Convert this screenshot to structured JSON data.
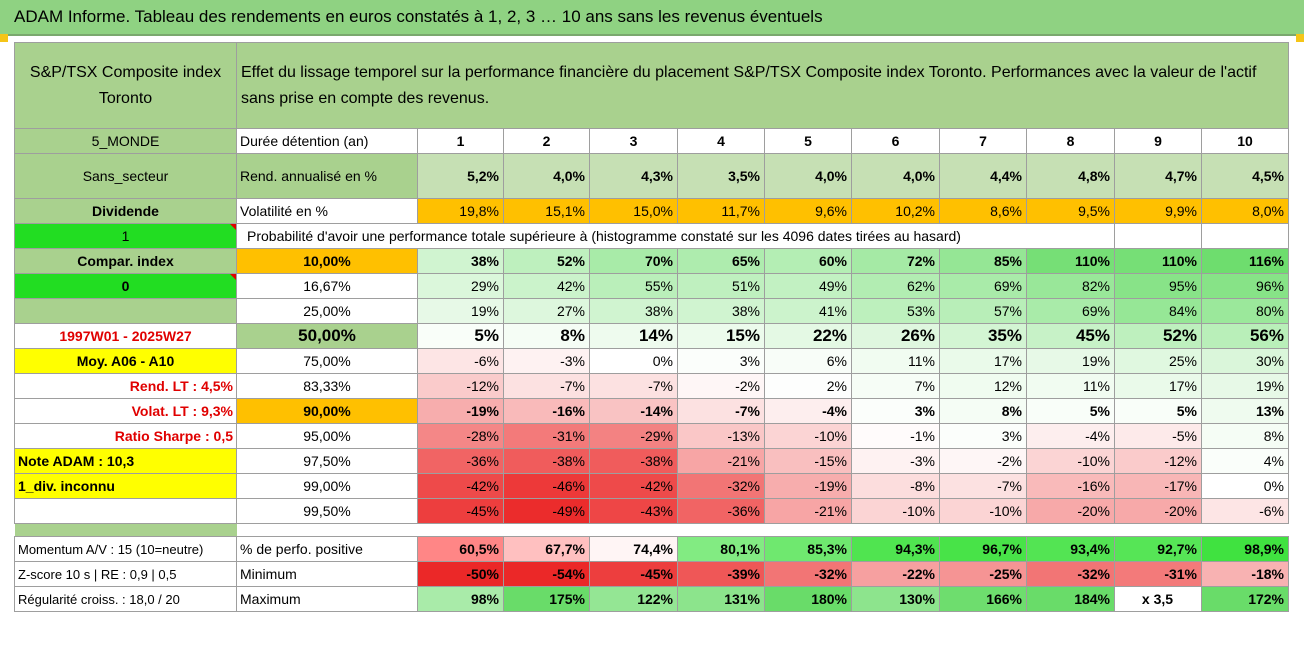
{
  "title": "ADAM Informe. Tableau des rendements en euros constatés à 1, 2, 3 … 10 ans sans les revenus éventuels",
  "header": {
    "index_name": "S&P/TSX Composite index Toronto",
    "description": "Effet du lissage temporel sur la performance financière du placement S&P/TSX Composite index Toronto. Performances avec la valeur de l'actif sans prise en compte des revenus."
  },
  "left_labels": {
    "monde": "5_MONDE",
    "secteur": "Sans_secteur",
    "dividende": "Dividende",
    "one": "1",
    "compar": "Compar. index",
    "zero": "0",
    "period": "1997W01 - 2025W27",
    "moy": "Moy. A06 - A10",
    "rend_lt": "Rend. LT :   4,5%",
    "volat_lt": "Volat. LT :   9,3%",
    "sharpe": "Ratio Sharpe :   0,5",
    "note": "Note ADAM : 10,3",
    "div": "1_div. inconnu"
  },
  "row_labels": {
    "duree": "Durée détention (an)",
    "rend": "Rend. annualisé en %",
    "vol": "Volatilité en %",
    "proba": "Probabilité d'avoir une performance totale supérieure à (histogramme constaté sur les 4096 dates tirées au hasard)"
  },
  "years": [
    "1",
    "2",
    "3",
    "4",
    "5",
    "6",
    "7",
    "8",
    "9",
    "10"
  ],
  "rend": [
    "5,2%",
    "4,0%",
    "4,3%",
    "3,5%",
    "4,0%",
    "4,0%",
    "4,4%",
    "4,8%",
    "4,7%",
    "4,5%"
  ],
  "vol": [
    "19,8%",
    "15,1%",
    "15,0%",
    "11,7%",
    "9,6%",
    "10,2%",
    "8,6%",
    "9,5%",
    "9,9%",
    "8,0%"
  ],
  "percentiles": [
    {
      "label": "10,00%",
      "values": [
        "38%",
        "52%",
        "70%",
        "65%",
        "60%",
        "72%",
        "85%",
        "110%",
        "110%",
        "116%"
      ]
    },
    {
      "label": "16,67%",
      "values": [
        "29%",
        "42%",
        "55%",
        "51%",
        "49%",
        "62%",
        "69%",
        "82%",
        "95%",
        "96%"
      ]
    },
    {
      "label": "25,00%",
      "values": [
        "19%",
        "27%",
        "38%",
        "38%",
        "41%",
        "53%",
        "57%",
        "69%",
        "84%",
        "80%"
      ]
    },
    {
      "label": "50,00%",
      "values": [
        "5%",
        "8%",
        "14%",
        "15%",
        "22%",
        "26%",
        "35%",
        "45%",
        "52%",
        "56%"
      ]
    },
    {
      "label": "75,00%",
      "values": [
        "-6%",
        "-3%",
        "0%",
        "3%",
        "6%",
        "11%",
        "17%",
        "19%",
        "25%",
        "30%"
      ]
    },
    {
      "label": "83,33%",
      "values": [
        "-12%",
        "-7%",
        "-7%",
        "-2%",
        "2%",
        "7%",
        "12%",
        "11%",
        "17%",
        "19%"
      ]
    },
    {
      "label": "90,00%",
      "values": [
        "-19%",
        "-16%",
        "-14%",
        "-7%",
        "-4%",
        "3%",
        "8%",
        "5%",
        "5%",
        "13%"
      ]
    },
    {
      "label": "95,00%",
      "values": [
        "-28%",
        "-31%",
        "-29%",
        "-13%",
        "-10%",
        "-1%",
        "3%",
        "-4%",
        "-5%",
        "8%"
      ]
    },
    {
      "label": "97,50%",
      "values": [
        "-36%",
        "-38%",
        "-38%",
        "-21%",
        "-15%",
        "-3%",
        "-2%",
        "-10%",
        "-12%",
        "4%"
      ]
    },
    {
      "label": "99,00%",
      "values": [
        "-42%",
        "-46%",
        "-42%",
        "-32%",
        "-19%",
        "-8%",
        "-7%",
        "-16%",
        "-17%",
        "0%"
      ]
    },
    {
      "label": "99,50%",
      "values": [
        "-45%",
        "-49%",
        "-43%",
        "-36%",
        "-21%",
        "-10%",
        "-10%",
        "-20%",
        "-20%",
        "-6%"
      ]
    }
  ],
  "bottom": {
    "momentum": "Momentum A/V : 15 (10=neutre)",
    "zscore": "Z-score 10 s | RE : 0,9 | 0,5",
    "regularite": "Régularité croiss. : 18,0 / 20",
    "pos_label": "% de perfo. positive",
    "min_label": "Minimum",
    "max_label": "Maximum",
    "pos": [
      "60,5%",
      "67,7%",
      "74,4%",
      "80,1%",
      "85,3%",
      "94,3%",
      "96,7%",
      "93,4%",
      "92,7%",
      "98,9%"
    ],
    "min": [
      "-50%",
      "-54%",
      "-45%",
      "-39%",
      "-32%",
      "-22%",
      "-25%",
      "-32%",
      "-31%",
      "-18%"
    ],
    "max": [
      "98%",
      "175%",
      "122%",
      "131%",
      "180%",
      "130%",
      "166%",
      "184%",
      "x 3,5",
      "172%"
    ]
  },
  "colors": {
    "green_header": "#8fd282",
    "orange": "#ffc000",
    "bright_green": "#22dd22",
    "yellow": "#ffff00",
    "red_text": "#e00000"
  }
}
